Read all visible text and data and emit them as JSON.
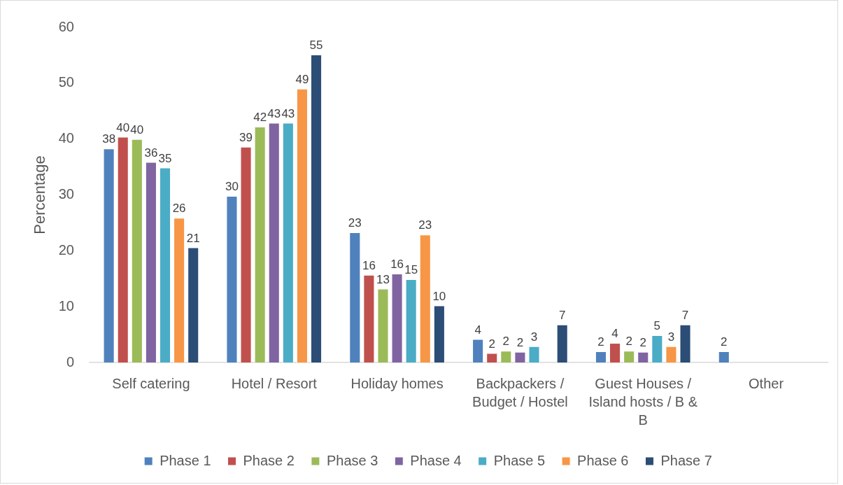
{
  "chart_data": {
    "type": "bar",
    "ylabel": "Percentage",
    "categories": [
      "Self catering",
      "Hotel / Resort",
      "Holiday homes",
      "Backpackers / Budget / Hostel",
      "Guest Houses / Island hosts / B & B",
      "Other"
    ],
    "series": [
      {
        "name": "Phase 1",
        "color": "#4f81bd",
        "values": [
          38.3,
          29.8,
          23.3,
          4.2,
          2.0,
          2.0
        ],
        "value_labels": [
          "38",
          "30",
          "23",
          "4",
          "2",
          "2"
        ]
      },
      {
        "name": "Phase 2",
        "color": "#c0504d",
        "values": [
          40.4,
          38.6,
          15.7,
          1.7,
          3.5,
          null
        ],
        "value_labels": [
          "40",
          "39",
          "16",
          "2",
          "4",
          null
        ]
      },
      {
        "name": "Phase 3",
        "color": "#9bbb59",
        "values": [
          40.0,
          42.2,
          13.2,
          2.1,
          2.1,
          null
        ],
        "value_labels": [
          "40",
          "42",
          "13",
          "2",
          "2",
          null
        ]
      },
      {
        "name": "Phase 4",
        "color": "#8064a2",
        "values": [
          35.9,
          42.9,
          15.9,
          1.9,
          1.9,
          null
        ],
        "value_labels": [
          "36",
          "43",
          "16",
          "2",
          "2",
          null
        ]
      },
      {
        "name": "Phase 5",
        "color": "#4bacc6",
        "values": [
          34.9,
          42.9,
          14.9,
          2.9,
          4.9,
          null
        ],
        "value_labels": [
          "35",
          "43",
          "15",
          "3",
          "5",
          null
        ]
      },
      {
        "name": "Phase 6",
        "color": "#f79646",
        "values": [
          25.9,
          49.0,
          22.9,
          null,
          2.9,
          null
        ],
        "value_labels": [
          "26",
          "49",
          "23",
          null,
          "3",
          null
        ]
      },
      {
        "name": "Phase 7",
        "color": "#2c4d75",
        "values": [
          20.6,
          55.1,
          10.2,
          6.8,
          6.8,
          null
        ],
        "value_labels": [
          "21",
          "55",
          "10",
          "7",
          "7",
          null
        ]
      }
    ],
    "ylim": [
      0,
      60
    ],
    "yticks": [
      0,
      10,
      20,
      30,
      40,
      50,
      60
    ],
    "legend": "bottom"
  }
}
